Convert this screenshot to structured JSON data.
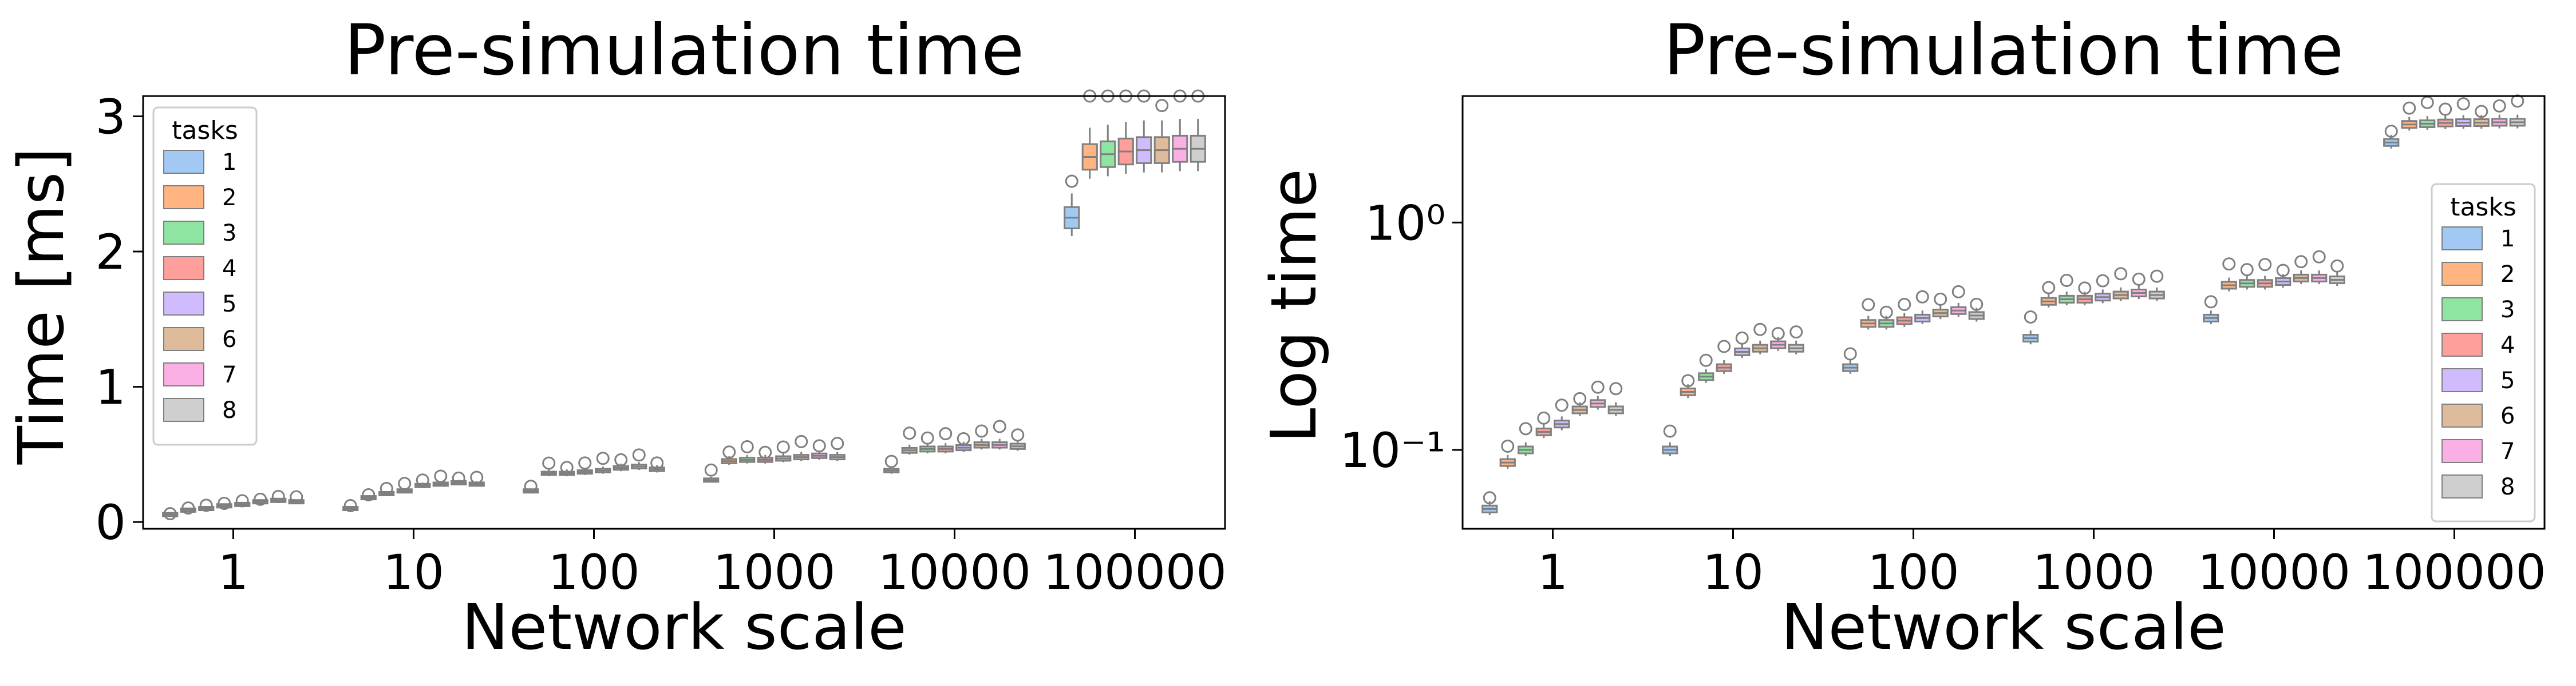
{
  "chart_data": [
    {
      "type": "box",
      "title": "Pre-simulation time",
      "xlabel": "Network scale",
      "ylabel": "Time [ms]",
      "yscale": "linear",
      "ylim": [
        -0.05,
        3.15
      ],
      "yticks": [
        0,
        1,
        2,
        3
      ],
      "categories": [
        "1",
        "10",
        "100",
        "1000",
        "10000",
        "100000"
      ],
      "legend": {
        "title": "tasks",
        "placement": "top-left",
        "entries": [
          "1",
          "2",
          "3",
          "4",
          "5",
          "6",
          "7",
          "8"
        ]
      },
      "series_by_tasks": [
        {
          "name": "1",
          "values": [
            0.055,
            0.1,
            0.23,
            0.31,
            0.38,
            2.25
          ]
        },
        {
          "name": "2",
          "values": [
            0.088,
            0.18,
            0.36,
            0.45,
            0.53,
            2.7
          ]
        },
        {
          "name": "3",
          "values": [
            0.1,
            0.21,
            0.36,
            0.46,
            0.54,
            2.72
          ]
        },
        {
          "name": "4",
          "values": [
            0.12,
            0.23,
            0.37,
            0.46,
            0.54,
            2.74
          ]
        },
        {
          "name": "5",
          "values": [
            0.13,
            0.27,
            0.38,
            0.47,
            0.55,
            2.75
          ]
        },
        {
          "name": "6",
          "values": [
            0.15,
            0.28,
            0.4,
            0.48,
            0.57,
            2.75
          ]
        },
        {
          "name": "7",
          "values": [
            0.16,
            0.29,
            0.41,
            0.49,
            0.57,
            2.76
          ]
        },
        {
          "name": "8",
          "values": [
            0.15,
            0.28,
            0.39,
            0.48,
            0.56,
            2.76
          ]
        }
      ]
    },
    {
      "type": "box",
      "title": "Pre-simulation time",
      "xlabel": "Network scale",
      "ylabel": "Log time",
      "yscale": "log",
      "ylim": [
        0.045,
        3.6
      ],
      "yticks": [
        0.1,
        1
      ],
      "ytick_labels": [
        "10⁻¹",
        "10⁰"
      ],
      "categories": [
        "1",
        "10",
        "100",
        "1000",
        "10000",
        "100000"
      ],
      "legend": {
        "title": "tasks",
        "placement": "center-right",
        "entries": [
          "1",
          "2",
          "3",
          "4",
          "5",
          "6",
          "7",
          "8"
        ]
      },
      "series_by_tasks": [
        {
          "name": "1",
          "values": [
            0.055,
            0.1,
            0.23,
            0.31,
            0.38,
            2.25
          ]
        },
        {
          "name": "2",
          "values": [
            0.088,
            0.18,
            0.36,
            0.45,
            0.53,
            2.7
          ]
        },
        {
          "name": "3",
          "values": [
            0.1,
            0.21,
            0.36,
            0.46,
            0.54,
            2.72
          ]
        },
        {
          "name": "4",
          "values": [
            0.12,
            0.23,
            0.37,
            0.46,
            0.54,
            2.74
          ]
        },
        {
          "name": "5",
          "values": [
            0.13,
            0.27,
            0.38,
            0.47,
            0.55,
            2.75
          ]
        },
        {
          "name": "6",
          "values": [
            0.15,
            0.28,
            0.4,
            0.48,
            0.57,
            2.75
          ]
        },
        {
          "name": "7",
          "values": [
            0.16,
            0.29,
            0.41,
            0.49,
            0.57,
            2.76
          ]
        },
        {
          "name": "8",
          "values": [
            0.15,
            0.28,
            0.39,
            0.48,
            0.56,
            2.76
          ]
        }
      ]
    }
  ],
  "palette": {
    "1": "#a1c9f4",
    "2": "#ffb482",
    "3": "#8de5a1",
    "4": "#ff9f9b",
    "5": "#d0bbff",
    "6": "#debb9b",
    "7": "#fab0e4",
    "8": "#cfcfcf"
  },
  "box_edge_color": "#7f7f7f"
}
